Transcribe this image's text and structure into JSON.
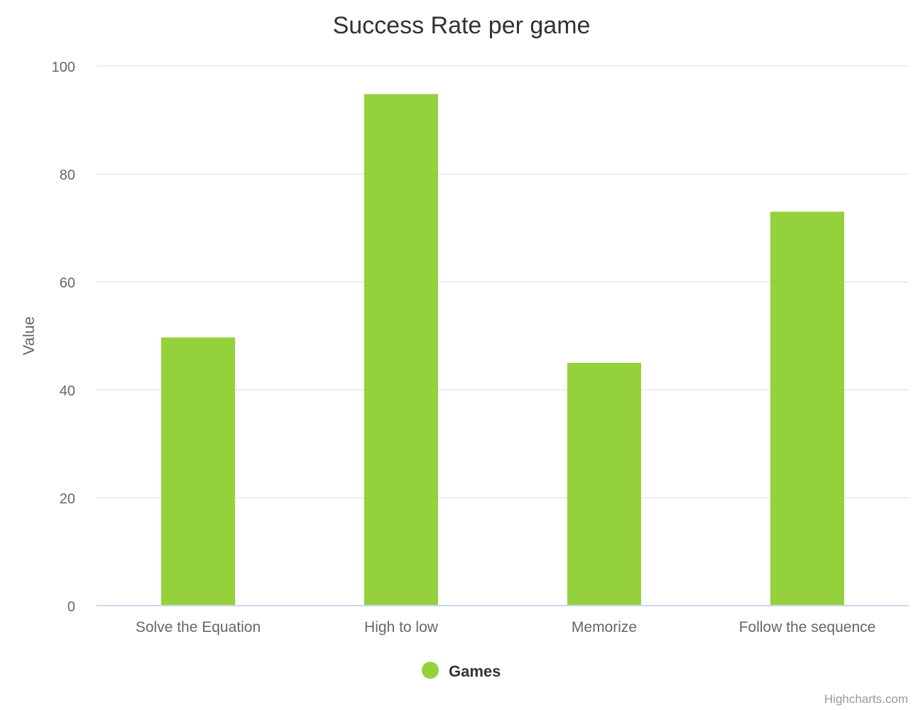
{
  "chart_data": {
    "type": "bar",
    "title": "Success Rate per game",
    "xlabel": "",
    "ylabel": "Value",
    "categories": [
      "Solve the Equation",
      "High to low",
      "Memorize",
      "Follow the sequence"
    ],
    "series": [
      {
        "name": "Games",
        "values": [
          49.7,
          94.8,
          45.0,
          73.0
        ],
        "color": "#95d13c"
      }
    ],
    "ylim": [
      0,
      100
    ],
    "yticks": [
      0,
      20,
      40,
      60,
      80,
      100
    ],
    "grid": true,
    "legend_position": "bottom-center"
  },
  "credits": "Highcharts.com"
}
